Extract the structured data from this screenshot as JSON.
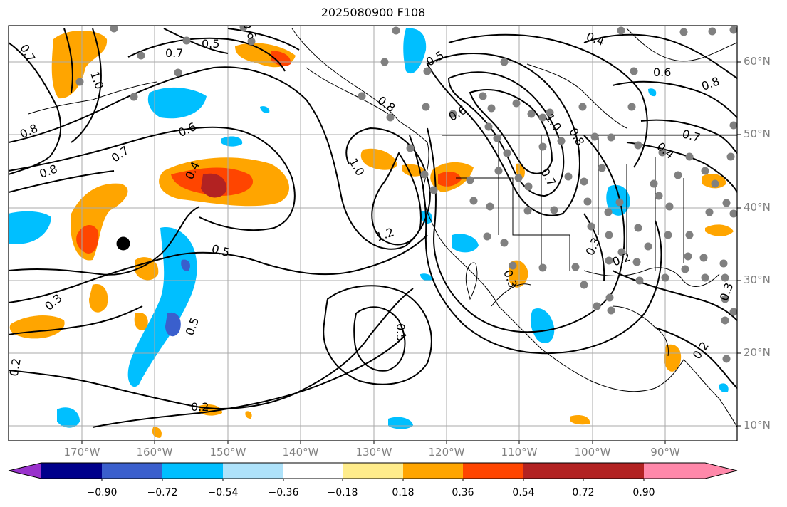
{
  "title": "2025080900 F108",
  "lat_labels": [
    "60°N",
    "50°N",
    "40°N",
    "30°N",
    "20°N",
    "10°N"
  ],
  "lon_labels": [
    "170°W",
    "160°W",
    "150°W",
    "140°W",
    "130°W",
    "120°W",
    "110°W",
    "100°W",
    "90°W"
  ],
  "colorbar": {
    "ticks": [
      "−0.90",
      "−0.72",
      "−0.54",
      "−0.36",
      "−0.18",
      "0.18",
      "0.36",
      "0.54",
      "0.72",
      "0.90"
    ],
    "colors": [
      "#9932cc",
      "#00008b",
      "#3a5fcd",
      "#00bfff",
      "#aee2fa",
      "#ffffff",
      "#ffec8b",
      "#ffa500",
      "#ff4500",
      "#b22222",
      "#ff88aa"
    ]
  },
  "contour_labels": [
    "0.7",
    "0.5",
    "0.6",
    "1.0",
    "0.8",
    "0.7",
    "0.6",
    "0.8",
    "0.7",
    "0.4",
    "0.5",
    "0.3",
    "0.2",
    "0.5",
    "1.2",
    "1.0",
    "0.8",
    "0.5",
    "0.6",
    "0.4",
    "0.6",
    "0.8",
    "1.0",
    "0.8",
    "0.7",
    "0.7",
    "0.4",
    "0.3",
    "0.2",
    "0.3",
    "0.2",
    "0.3",
    "0.5",
    "0.2"
  ],
  "colors": {
    "contour": "#000000",
    "station": "#808080",
    "grid": "#aaaaaa",
    "coast": "#000000"
  }
}
